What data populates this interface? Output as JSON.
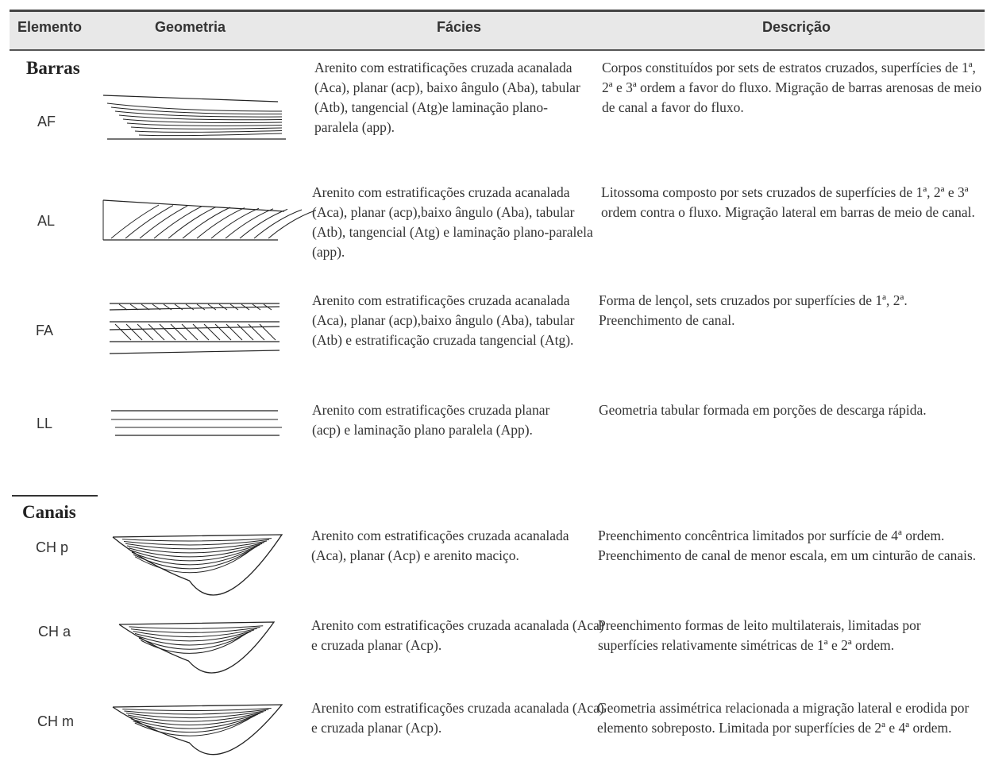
{
  "header": {
    "columns": [
      "Elemento",
      "Geometria",
      "Fácies",
      "Descrição"
    ]
  },
  "groups": [
    {
      "title": "Barras",
      "rows": [
        {
          "element": "AF",
          "facies": "Arenito com estratificações cruzada acanalada (Aca), planar (acp), baixo ângulo (Aba), tabular (Atb), tangencial (Atg)e laminação plano-paralela (app).",
          "description": "Corpos constituídos por sets de estratos cruzados, superfícies de 1ª, 2ª e 3ª ordem a favor do fluxo. Migração de barras arenosas de meio de canal a favor do fluxo."
        },
        {
          "element": "AL",
          "facies": "Arenito com estratificações cruzada acanalada (Aca), planar (acp),baixo ângulo (Aba), tabular (Atb), tangencial (Atg) e laminação plano-paralela (app).",
          "description": "Litossoma composto por sets cruzados de superfícies de  1ª, 2ª e 3ª ordem contra o fluxo. Migração lateral em barras de meio de canal."
        },
        {
          "element": "FA",
          "facies": "Arenito com estratificações cruzada acanalada (Aca), planar (acp),baixo ângulo (Aba), tabular (Atb) e estratificação cruzada tangencial (Atg).",
          "description": "Forma de lençol, sets cruzados por superfícies de 1ª, 2ª. Preenchimento de canal."
        },
        {
          "element": "LL",
          "facies": "Arenito com estratificações cruzada planar (acp) e laminação plano paralela (App).",
          "description": "Geometria tabular formada em porções de descarga rápida."
        }
      ]
    },
    {
      "title": "Canais",
      "rows": [
        {
          "element": "CH p",
          "facies": "Arenito com estratificações cruzada acanalada (Aca), planar (Acp) e arenito maciço.",
          "description": "Preenchimento concêntrica limitados por surfície de 4ª ordem. Preenchimento de canal de menor escala, em um cinturão de canais."
        },
        {
          "element": "CH a",
          "facies": "Arenito com estratificações cruzada acanalada (Aca) e cruzada planar (Acp).",
          "description": "Preenchimento formas de leito multilaterais, limitadas por superfícies relativamente simétricas de 1ª e 2ª ordem."
        },
        {
          "element": "CH m",
          "facies": "Arenito com estratificações cruzada acanalada (Aca) e cruzada planar (Acp).",
          "description": "Geometria assimétrica relacionada a migração lateral e erodida por elemento sobreposto. Limitada por superfícies de 2ª e 4ª ordem."
        }
      ]
    }
  ]
}
